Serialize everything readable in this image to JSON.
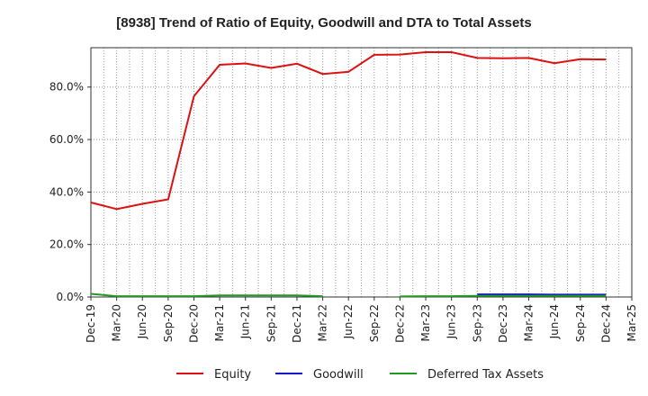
{
  "chart_data": {
    "type": "line",
    "title": "[8938]  Trend of Ratio of Equity, Goodwill and DTA to Total Assets",
    "x": [
      "Dec-19",
      "Mar-20",
      "Jun-20",
      "Sep-20",
      "Dec-20",
      "Mar-21",
      "Jun-21",
      "Sep-21",
      "Dec-21",
      "Mar-22",
      "Jun-22",
      "Sep-22",
      "Dec-22",
      "Mar-23",
      "Jun-23",
      "Sep-23",
      "Dec-23",
      "Mar-24",
      "Jun-24",
      "Sep-24",
      "Dec-24",
      "Mar-25"
    ],
    "ylim": [
      0,
      95
    ],
    "yticks": [
      0,
      20,
      40,
      60,
      80
    ],
    "ytick_labels": [
      "0.0%",
      "20.0%",
      "40.0%",
      "60.0%",
      "80.0%"
    ],
    "grid": true,
    "legend_position": "bottom",
    "series": [
      {
        "name": "Equity",
        "color": "#dd1111",
        "values": [
          36.0,
          33.5,
          35.5,
          37.2,
          76.5,
          88.5,
          89.0,
          87.3,
          88.9,
          85.0,
          85.8,
          92.3,
          92.4,
          93.3,
          93.3,
          91.1,
          91.0,
          91.1,
          89.1,
          90.6,
          90.5,
          null
        ]
      },
      {
        "name": "Goodwill",
        "color": "#1111cc",
        "values": [
          null,
          null,
          null,
          null,
          null,
          null,
          null,
          null,
          null,
          null,
          null,
          null,
          null,
          null,
          null,
          1.0,
          1.0,
          1.0,
          0.9,
          0.9,
          0.9,
          null
        ]
      },
      {
        "name": "Deferred Tax Assets",
        "color": "#229922",
        "values": [
          1.2,
          0.3,
          0.3,
          0.3,
          0.3,
          0.6,
          0.6,
          0.6,
          0.6,
          0.3,
          null,
          null,
          0.2,
          0.3,
          0.3,
          0.4,
          0.4,
          0.4,
          0.4,
          0.4,
          0.4,
          null
        ]
      }
    ]
  }
}
